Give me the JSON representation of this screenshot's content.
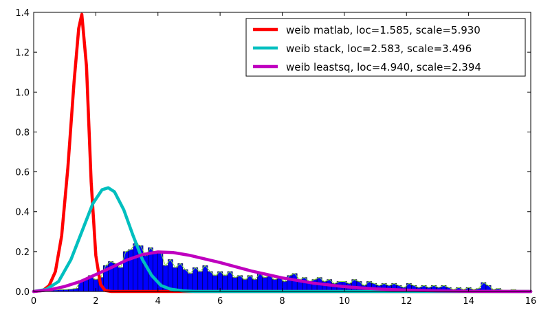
{
  "chart_data": {
    "type": "line",
    "title": "",
    "xlabel": "",
    "ylabel": "",
    "xlim": [
      0,
      16
    ],
    "ylim": [
      0,
      1.4
    ],
    "x_ticks": [
      "0",
      "2",
      "4",
      "6",
      "8",
      "10",
      "12",
      "14",
      "16"
    ],
    "y_ticks": [
      "0.0",
      "0.2",
      "0.4",
      "0.6",
      "0.8",
      "1.0",
      "1.2",
      "1.4"
    ],
    "grid": false,
    "legend_position": "top-right",
    "histogram": {
      "bin_width": 0.16,
      "color": "#0000ff",
      "edge_color": "#000000",
      "outline_color": "#88e03a",
      "bins": [
        [
          0.16,
          0.005
        ],
        [
          0.32,
          0.005
        ],
        [
          0.48,
          0.008
        ],
        [
          0.64,
          0.008
        ],
        [
          0.8,
          0.01
        ],
        [
          0.96,
          0.01
        ],
        [
          1.12,
          0.012
        ],
        [
          1.28,
          0.015
        ],
        [
          1.44,
          0.055
        ],
        [
          1.6,
          0.06
        ],
        [
          1.76,
          0.08
        ],
        [
          1.92,
          0.06
        ],
        [
          2.08,
          0.07
        ],
        [
          2.24,
          0.13
        ],
        [
          2.4,
          0.15
        ],
        [
          2.56,
          0.14
        ],
        [
          2.72,
          0.12
        ],
        [
          2.88,
          0.2
        ],
        [
          3.04,
          0.21
        ],
        [
          3.2,
          0.24
        ],
        [
          3.36,
          0.23
        ],
        [
          3.52,
          0.18
        ],
        [
          3.68,
          0.22
        ],
        [
          3.84,
          0.19
        ],
        [
          4.0,
          0.2
        ],
        [
          4.16,
          0.13
        ],
        [
          4.32,
          0.16
        ],
        [
          4.48,
          0.12
        ],
        [
          4.64,
          0.14
        ],
        [
          4.8,
          0.11
        ],
        [
          4.96,
          0.09
        ],
        [
          5.12,
          0.12
        ],
        [
          5.28,
          0.1
        ],
        [
          5.44,
          0.13
        ],
        [
          5.6,
          0.1
        ],
        [
          5.76,
          0.08
        ],
        [
          5.92,
          0.1
        ],
        [
          6.08,
          0.08
        ],
        [
          6.24,
          0.1
        ],
        [
          6.4,
          0.07
        ],
        [
          6.56,
          0.08
        ],
        [
          6.72,
          0.06
        ],
        [
          6.88,
          0.08
        ],
        [
          7.04,
          0.06
        ],
        [
          7.2,
          0.09
        ],
        [
          7.36,
          0.07
        ],
        [
          7.52,
          0.08
        ],
        [
          7.68,
          0.06
        ],
        [
          7.84,
          0.07
        ],
        [
          8.0,
          0.05
        ],
        [
          8.16,
          0.08
        ],
        [
          8.32,
          0.09
        ],
        [
          8.48,
          0.06
        ],
        [
          8.64,
          0.07
        ],
        [
          8.8,
          0.05
        ],
        [
          8.96,
          0.06
        ],
        [
          9.12,
          0.07
        ],
        [
          9.28,
          0.05
        ],
        [
          9.44,
          0.06
        ],
        [
          9.6,
          0.04
        ],
        [
          9.76,
          0.05
        ],
        [
          9.92,
          0.05
        ],
        [
          10.08,
          0.04
        ],
        [
          10.24,
          0.06
        ],
        [
          10.4,
          0.05
        ],
        [
          10.56,
          0.03
        ],
        [
          10.72,
          0.05
        ],
        [
          10.88,
          0.04
        ],
        [
          11.04,
          0.03
        ],
        [
          11.2,
          0.04
        ],
        [
          11.36,
          0.03
        ],
        [
          11.52,
          0.04
        ],
        [
          11.68,
          0.03
        ],
        [
          11.84,
          0.02
        ],
        [
          12.0,
          0.04
        ],
        [
          12.16,
          0.03
        ],
        [
          12.32,
          0.02
        ],
        [
          12.48,
          0.03
        ],
        [
          12.64,
          0.02
        ],
        [
          12.8,
          0.03
        ],
        [
          12.96,
          0.02
        ],
        [
          13.12,
          0.03
        ],
        [
          13.28,
          0.02
        ],
        [
          13.44,
          0.01
        ],
        [
          13.6,
          0.02
        ],
        [
          13.76,
          0.01
        ],
        [
          13.92,
          0.02
        ],
        [
          14.08,
          0.01
        ],
        [
          14.24,
          0.015
        ],
        [
          14.4,
          0.045
        ],
        [
          14.56,
          0.03
        ],
        [
          14.72,
          0.01
        ],
        [
          14.88,
          0.015
        ],
        [
          15.04,
          0.005
        ],
        [
          15.2,
          0.005
        ],
        [
          15.36,
          0.01
        ],
        [
          15.52,
          0.005
        ],
        [
          15.68,
          0.003
        ],
        [
          15.84,
          0.003
        ]
      ]
    },
    "series": [
      {
        "name": "weib matlab, loc=1.585, scale=5.930",
        "color": "#ff0000",
        "x": [
          0.0,
          0.3,
          0.5,
          0.7,
          0.9,
          1.1,
          1.3,
          1.45,
          1.55,
          1.7,
          1.85,
          2.0,
          2.15,
          2.3,
          2.5,
          2.8,
          3.2,
          16.0
        ],
        "y": [
          0.0,
          0.005,
          0.03,
          0.1,
          0.28,
          0.62,
          1.05,
          1.32,
          1.39,
          1.13,
          0.55,
          0.18,
          0.035,
          0.005,
          0.0,
          0.0,
          0.0,
          0.0
        ]
      },
      {
        "name": "weib stack, loc=2.583, scale=3.496",
        "color": "#00bfbf",
        "x": [
          0.0,
          0.4,
          0.8,
          1.2,
          1.6,
          1.9,
          2.2,
          2.4,
          2.6,
          2.9,
          3.2,
          3.5,
          3.8,
          4.1,
          4.4,
          4.8,
          5.2,
          16.0
        ],
        "y": [
          0.0,
          0.01,
          0.05,
          0.16,
          0.32,
          0.44,
          0.51,
          0.52,
          0.5,
          0.41,
          0.28,
          0.16,
          0.08,
          0.03,
          0.012,
          0.003,
          0.0,
          0.0
        ]
      },
      {
        "name": "weib leastsq, loc=4.940, scale=2.394",
        "color": "#bf00bf",
        "x": [
          0.0,
          0.5,
          1.0,
          1.5,
          2.0,
          2.5,
          3.0,
          3.5,
          4.0,
          4.5,
          5.0,
          6.0,
          7.0,
          8.0,
          9.0,
          10.0,
          11.0,
          12.0,
          13.0,
          14.0,
          16.0
        ],
        "y": [
          0.0,
          0.008,
          0.025,
          0.05,
          0.085,
          0.12,
          0.158,
          0.185,
          0.198,
          0.195,
          0.182,
          0.145,
          0.103,
          0.068,
          0.042,
          0.024,
          0.013,
          0.007,
          0.003,
          0.001,
          0.0
        ]
      }
    ]
  }
}
